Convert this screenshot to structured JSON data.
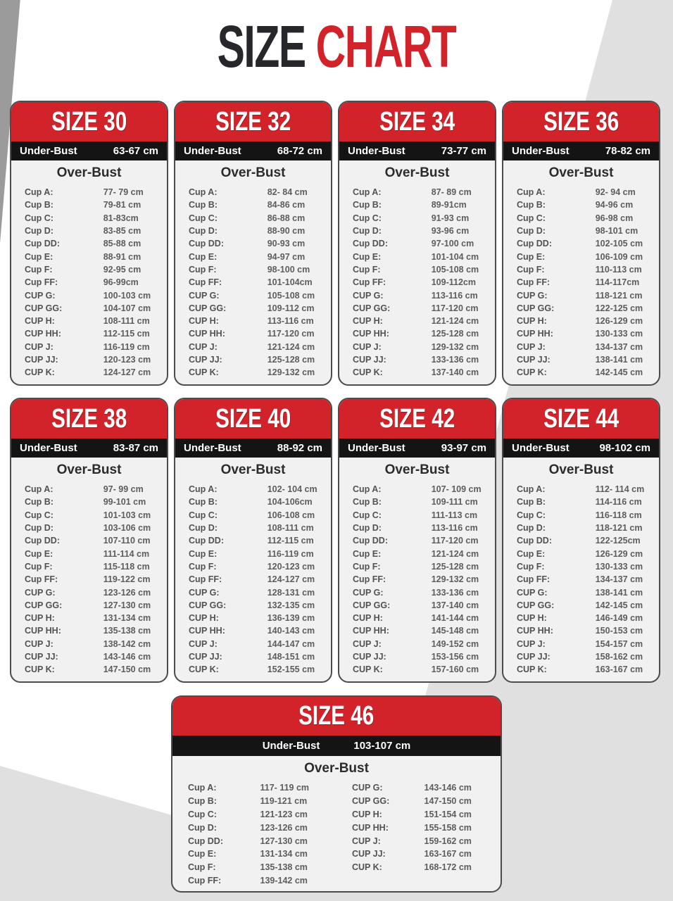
{
  "title": {
    "word_black": "SIZE",
    "word_red": "CHART"
  },
  "labels": {
    "under_bust": "Under-Bust",
    "over_bust": "Over-Bust"
  },
  "colors": {
    "accent_red": "#d2232a",
    "band_black": "#141414",
    "card_bg": "#f2f1f1",
    "page_bg": "#ffffff",
    "diagonal_gray": "#e0e0e0",
    "corner_gray": "#9b9b9b"
  },
  "cards": [
    {
      "size": "SIZE 30",
      "under_bust": "63-67 cm",
      "rows": [
        [
          "Cup A:",
          "77- 79 cm"
        ],
        [
          "Cup B:",
          "79-81 cm"
        ],
        [
          "Cup C:",
          "81-83cm"
        ],
        [
          "Cup D:",
          "83-85 cm"
        ],
        [
          "Cup DD:",
          "85-88 cm"
        ],
        [
          "Cup E:",
          "88-91 cm"
        ],
        [
          "Cup F:",
          "92-95 cm"
        ],
        [
          "Cup FF:",
          "96-99cm"
        ],
        [
          "CUP G:",
          "100-103 cm"
        ],
        [
          "CUP GG:",
          "104-107 cm"
        ],
        [
          "CUP H:",
          "108-111 cm"
        ],
        [
          "CUP HH:",
          "112-115 cm"
        ],
        [
          "CUP J:",
          "116-119 cm"
        ],
        [
          "CUP JJ:",
          "120-123 cm"
        ],
        [
          "CUP K:",
          "124-127 cm"
        ]
      ]
    },
    {
      "size": "SIZE 32",
      "under_bust": "68-72 cm",
      "rows": [
        [
          "Cup A:",
          "82- 84 cm"
        ],
        [
          "Cup B:",
          "84-86 cm"
        ],
        [
          "Cup C:",
          "86-88 cm"
        ],
        [
          "Cup D:",
          "88-90 cm"
        ],
        [
          "Cup DD:",
          "90-93 cm"
        ],
        [
          "Cup E:",
          "94-97 cm"
        ],
        [
          "Cup F:",
          "98-100 cm"
        ],
        [
          "Cup FF:",
          "101-104cm"
        ],
        [
          "CUP G:",
          "105-108 cm"
        ],
        [
          "CUP GG:",
          "109-112 cm"
        ],
        [
          "CUP H:",
          "113-116 cm"
        ],
        [
          "CUP HH:",
          "117-120 cm"
        ],
        [
          "CUP J:",
          "121-124 cm"
        ],
        [
          "CUP JJ:",
          "125-128 cm"
        ],
        [
          "CUP K:",
          "129-132 cm"
        ]
      ]
    },
    {
      "size": "SIZE 34",
      "under_bust": "73-77 cm",
      "rows": [
        [
          "Cup A:",
          "87- 89 cm"
        ],
        [
          "Cup B:",
          "89-91cm"
        ],
        [
          "Cup C:",
          "91-93 cm"
        ],
        [
          "Cup D:",
          "93-96 cm"
        ],
        [
          "Cup DD:",
          "97-100 cm"
        ],
        [
          "Cup E:",
          "101-104 cm"
        ],
        [
          "Cup F:",
          "105-108 cm"
        ],
        [
          "Cup FF:",
          "109-112cm"
        ],
        [
          "CUP G:",
          "113-116 cm"
        ],
        [
          "CUP GG:",
          "117-120 cm"
        ],
        [
          "CUP H:",
          "121-124 cm"
        ],
        [
          "CUP HH:",
          "125-128 cm"
        ],
        [
          "CUP J:",
          "129-132 cm"
        ],
        [
          "CUP JJ:",
          "133-136 cm"
        ],
        [
          "CUP K:",
          "137-140 cm"
        ]
      ]
    },
    {
      "size": "SIZE 36",
      "under_bust": "78-82 cm",
      "rows": [
        [
          "Cup A:",
          "92- 94 cm"
        ],
        [
          "Cup B:",
          "94-96 cm"
        ],
        [
          "Cup C:",
          "96-98 cm"
        ],
        [
          "Cup D:",
          "98-101 cm"
        ],
        [
          "Cup DD:",
          "102-105 cm"
        ],
        [
          "Cup E:",
          "106-109 cm"
        ],
        [
          "Cup F:",
          "110-113 cm"
        ],
        [
          "Cup FF:",
          "114-117cm"
        ],
        [
          "CUP G:",
          "118-121 cm"
        ],
        [
          "CUP GG:",
          "122-125 cm"
        ],
        [
          "CUP H:",
          "126-129 cm"
        ],
        [
          "CUP HH:",
          "130-133 cm"
        ],
        [
          "CUP J:",
          "134-137 cm"
        ],
        [
          "CUP JJ:",
          "138-141 cm"
        ],
        [
          "CUP K:",
          "142-145 cm"
        ]
      ]
    },
    {
      "size": "SIZE 38",
      "under_bust": "83-87 cm",
      "rows": [
        [
          "Cup A:",
          "97- 99 cm"
        ],
        [
          "Cup B:",
          "99-101 cm"
        ],
        [
          "Cup C:",
          "101-103 cm"
        ],
        [
          "Cup D:",
          "103-106 cm"
        ],
        [
          "Cup DD:",
          "107-110 cm"
        ],
        [
          "Cup E:",
          "111-114 cm"
        ],
        [
          "Cup F:",
          "115-118 cm"
        ],
        [
          "Cup FF:",
          "119-122 cm"
        ],
        [
          "CUP G:",
          "123-126 cm"
        ],
        [
          "CUP GG:",
          "127-130 cm"
        ],
        [
          "CUP H:",
          "131-134 cm"
        ],
        [
          "CUP HH:",
          "135-138 cm"
        ],
        [
          "CUP J:",
          "138-142 cm"
        ],
        [
          "CUP JJ:",
          "143-146 cm"
        ],
        [
          "CUP K:",
          "147-150 cm"
        ]
      ]
    },
    {
      "size": "SIZE 40",
      "under_bust": "88-92 cm",
      "rows": [
        [
          "Cup A:",
          "102- 104 cm"
        ],
        [
          "Cup B:",
          "104-106cm"
        ],
        [
          "Cup C:",
          "106-108 cm"
        ],
        [
          "Cup D:",
          "108-111 cm"
        ],
        [
          "Cup DD:",
          "112-115 cm"
        ],
        [
          "Cup E:",
          "116-119 cm"
        ],
        [
          "Cup F:",
          "120-123 cm"
        ],
        [
          "Cup FF:",
          "124-127 cm"
        ],
        [
          "CUP G:",
          "128-131 cm"
        ],
        [
          "CUP GG:",
          "132-135 cm"
        ],
        [
          "CUP H:",
          "136-139 cm"
        ],
        [
          "CUP HH:",
          "140-143 cm"
        ],
        [
          "CUP J:",
          "144-147 cm"
        ],
        [
          "CUP JJ:",
          "148-151 cm"
        ],
        [
          "CUP K:",
          "152-155 cm"
        ]
      ]
    },
    {
      "size": "SIZE 42",
      "under_bust": "93-97 cm",
      "rows": [
        [
          "Cup A:",
          "107- 109 cm"
        ],
        [
          "Cup B:",
          "109-111 cm"
        ],
        [
          "Cup C:",
          "111-113 cm"
        ],
        [
          "Cup D:",
          "113-116 cm"
        ],
        [
          "Cup DD:",
          "117-120 cm"
        ],
        [
          "Cup E:",
          "121-124 cm"
        ],
        [
          "Cup F:",
          "125-128 cm"
        ],
        [
          "Cup FF:",
          "129-132 cm"
        ],
        [
          "CUP G:",
          "133-136 cm"
        ],
        [
          "CUP GG:",
          "137-140 cm"
        ],
        [
          "CUP H:",
          "141-144 cm"
        ],
        [
          "CUP HH:",
          "145-148 cm"
        ],
        [
          "CUP J:",
          "149-152 cm"
        ],
        [
          "CUP JJ:",
          "153-156 cm"
        ],
        [
          "CUP K:",
          "157-160 cm"
        ]
      ]
    },
    {
      "size": "SIZE 44",
      "under_bust": "98-102 cm",
      "rows": [
        [
          "Cup A:",
          "112- 114 cm"
        ],
        [
          "Cup B:",
          "114-116 cm"
        ],
        [
          "Cup C:",
          "116-118 cm"
        ],
        [
          "Cup D:",
          "118-121 cm"
        ],
        [
          "Cup DD:",
          "122-125cm"
        ],
        [
          "Cup E:",
          "126-129 cm"
        ],
        [
          "Cup F:",
          "130-133 cm"
        ],
        [
          "Cup FF:",
          "134-137 cm"
        ],
        [
          "CUP G:",
          "138-141 cm"
        ],
        [
          "CUP GG:",
          "142-145 cm"
        ],
        [
          "CUP H:",
          "146-149 cm"
        ],
        [
          "CUP HH:",
          "150-153 cm"
        ],
        [
          "CUP J:",
          "154-157 cm"
        ],
        [
          "CUP JJ:",
          "158-162 cm"
        ],
        [
          "CUP K:",
          "163-167 cm"
        ]
      ]
    },
    {
      "size": "SIZE 46",
      "under_bust": "103-107 cm",
      "rows": [
        [
          "Cup A:",
          "117- 119 cm"
        ],
        [
          "Cup B:",
          "119-121 cm"
        ],
        [
          "Cup C:",
          "121-123 cm"
        ],
        [
          "Cup D:",
          "123-126 cm"
        ],
        [
          "Cup DD:",
          "127-130 cm"
        ],
        [
          "Cup E:",
          "131-134 cm"
        ],
        [
          "Cup F:",
          "135-138 cm"
        ],
        [
          "Cup FF:",
          "139-142 cm"
        ],
        [
          "CUP G:",
          "143-146 cm"
        ],
        [
          "CUP GG:",
          "147-150 cm"
        ],
        [
          "CUP H:",
          "151-154 cm"
        ],
        [
          "CUP HH:",
          "155-158 cm"
        ],
        [
          "CUP J:",
          "159-162 cm"
        ],
        [
          "CUP JJ:",
          "163-167 cm"
        ],
        [
          "CUP K:",
          "168-172 cm"
        ]
      ]
    }
  ]
}
